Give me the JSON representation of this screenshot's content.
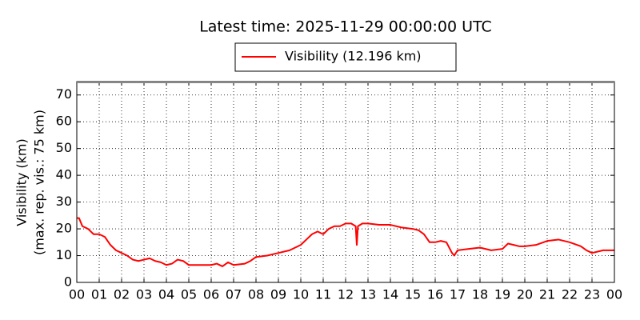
{
  "chart_data": {
    "type": "line",
    "title": "Latest time: 2025-11-29 00:00:00 UTC",
    "ylabel": [
      "Visibility (km)",
      "(max. rep. vis.: 75 km)"
    ],
    "x": [
      0,
      0.1,
      0.25,
      0.5,
      0.75,
      1,
      1.25,
      1.5,
      1.75,
      2,
      2.25,
      2.5,
      2.75,
      3,
      3.25,
      3.5,
      3.75,
      4,
      4.25,
      4.5,
      4.75,
      5,
      5.5,
      6,
      6.25,
      6.5,
      6.75,
      7,
      7.5,
      7.75,
      8,
      8.5,
      9,
      9.5,
      10,
      10.25,
      10.5,
      10.75,
      11,
      11.25,
      11.5,
      11.75,
      12,
      12.25,
      12.45,
      12.5,
      12.55,
      12.75,
      13,
      13.5,
      14,
      14.5,
      15,
      15.25,
      15.5,
      15.75,
      16,
      16.25,
      16.5,
      16.75,
      16.85,
      17,
      17.5,
      18,
      18.5,
      19,
      19.25,
      19.5,
      19.75,
      20,
      20.5,
      21,
      21.5,
      22,
      22.5,
      22.75,
      23,
      23.5,
      24
    ],
    "series": [
      {
        "name": "Visibility (12.196 km)",
        "color": "#ff0000",
        "values": [
          24,
          24,
          21,
          20,
          18,
          18,
          17,
          14,
          12,
          11,
          10,
          8.5,
          8,
          8.5,
          9,
          8,
          7.5,
          6.5,
          7,
          8.5,
          8,
          6.5,
          6.5,
          6.5,
          7,
          6,
          7.5,
          6.5,
          7,
          8,
          9.5,
          10,
          11,
          12,
          14,
          16,
          18,
          19,
          18,
          20,
          21,
          21,
          22,
          22,
          21,
          14,
          21,
          22,
          22,
          21.5,
          21.5,
          20.5,
          20,
          19.5,
          18,
          15,
          15,
          15.5,
          15,
          11,
          10,
          12,
          12.5,
          13,
          12,
          12.5,
          14.5,
          14,
          13.5,
          13.5,
          14,
          15.5,
          16,
          15,
          13.5,
          12,
          11,
          12,
          12
        ]
      }
    ],
    "xlim": [
      0,
      24
    ],
    "xticks": [
      {
        "value": 0,
        "label": "00"
      },
      {
        "value": 1,
        "label": "01"
      },
      {
        "value": 2,
        "label": "02"
      },
      {
        "value": 3,
        "label": "03"
      },
      {
        "value": 4,
        "label": "04"
      },
      {
        "value": 5,
        "label": "05"
      },
      {
        "value": 6,
        "label": "06"
      },
      {
        "value": 7,
        "label": "07"
      },
      {
        "value": 8,
        "label": "08"
      },
      {
        "value": 9,
        "label": "09"
      },
      {
        "value": 10,
        "label": "10"
      },
      {
        "value": 11,
        "label": "11"
      },
      {
        "value": 12,
        "label": "12"
      },
      {
        "value": 13,
        "label": "13"
      },
      {
        "value": 14,
        "label": "14"
      },
      {
        "value": 15,
        "label": "15"
      },
      {
        "value": 16,
        "label": "16"
      },
      {
        "value": 17,
        "label": "17"
      },
      {
        "value": 18,
        "label": "18"
      },
      {
        "value": 19,
        "label": "19"
      },
      {
        "value": 20,
        "label": "20"
      },
      {
        "value": 21,
        "label": "21"
      },
      {
        "value": 22,
        "label": "22"
      },
      {
        "value": 23,
        "label": "23"
      },
      {
        "value": 24,
        "label": "00"
      }
    ],
    "ylim": [
      0,
      75
    ],
    "yticks": [
      0,
      10,
      20,
      30,
      40,
      50,
      60,
      70
    ],
    "grid": true,
    "legend": "top"
  }
}
